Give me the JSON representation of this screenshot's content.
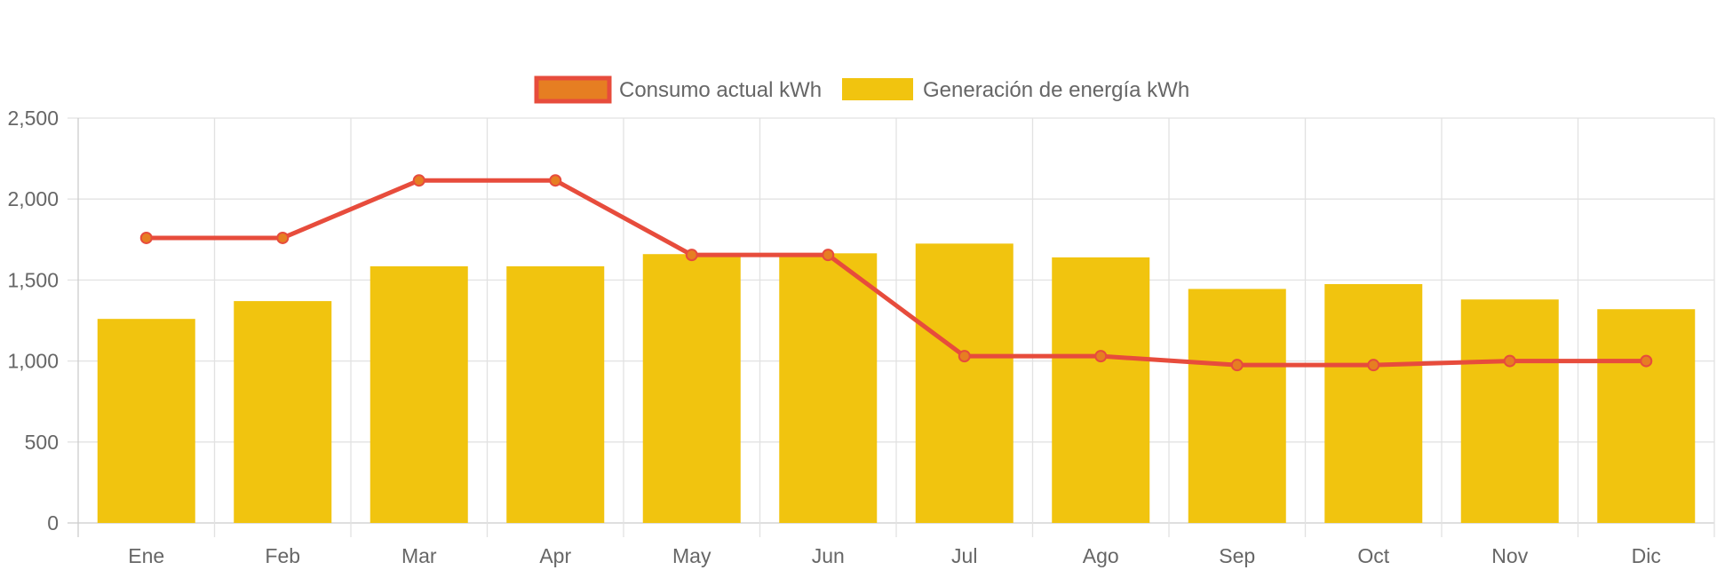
{
  "chart_data": {
    "type": "bar",
    "categories": [
      "Ene",
      "Feb",
      "Mar",
      "Apr",
      "May",
      "Jun",
      "Jul",
      "Ago",
      "Sep",
      "Oct",
      "Nov",
      "Dic"
    ],
    "series": [
      {
        "name": "Consumo actual kWh",
        "type": "line",
        "values": [
          1760,
          1760,
          2115,
          2115,
          1655,
          1655,
          1030,
          1030,
          975,
          975,
          1000,
          1000
        ],
        "color": "#e74c3c",
        "point_color": "#e67e22"
      },
      {
        "name": "Generación de energía kWh",
        "type": "bar",
        "values": [
          1260,
          1370,
          1585,
          1585,
          1660,
          1665,
          1725,
          1640,
          1445,
          1475,
          1380,
          1320
        ],
        "color": "#f1c40f"
      }
    ],
    "y_ticks": [
      "0",
      "500",
      "1,000",
      "1,500",
      "2,000",
      "2,500"
    ],
    "ylim": [
      0,
      2500
    ],
    "grid": true,
    "legend_position": "top-center"
  }
}
